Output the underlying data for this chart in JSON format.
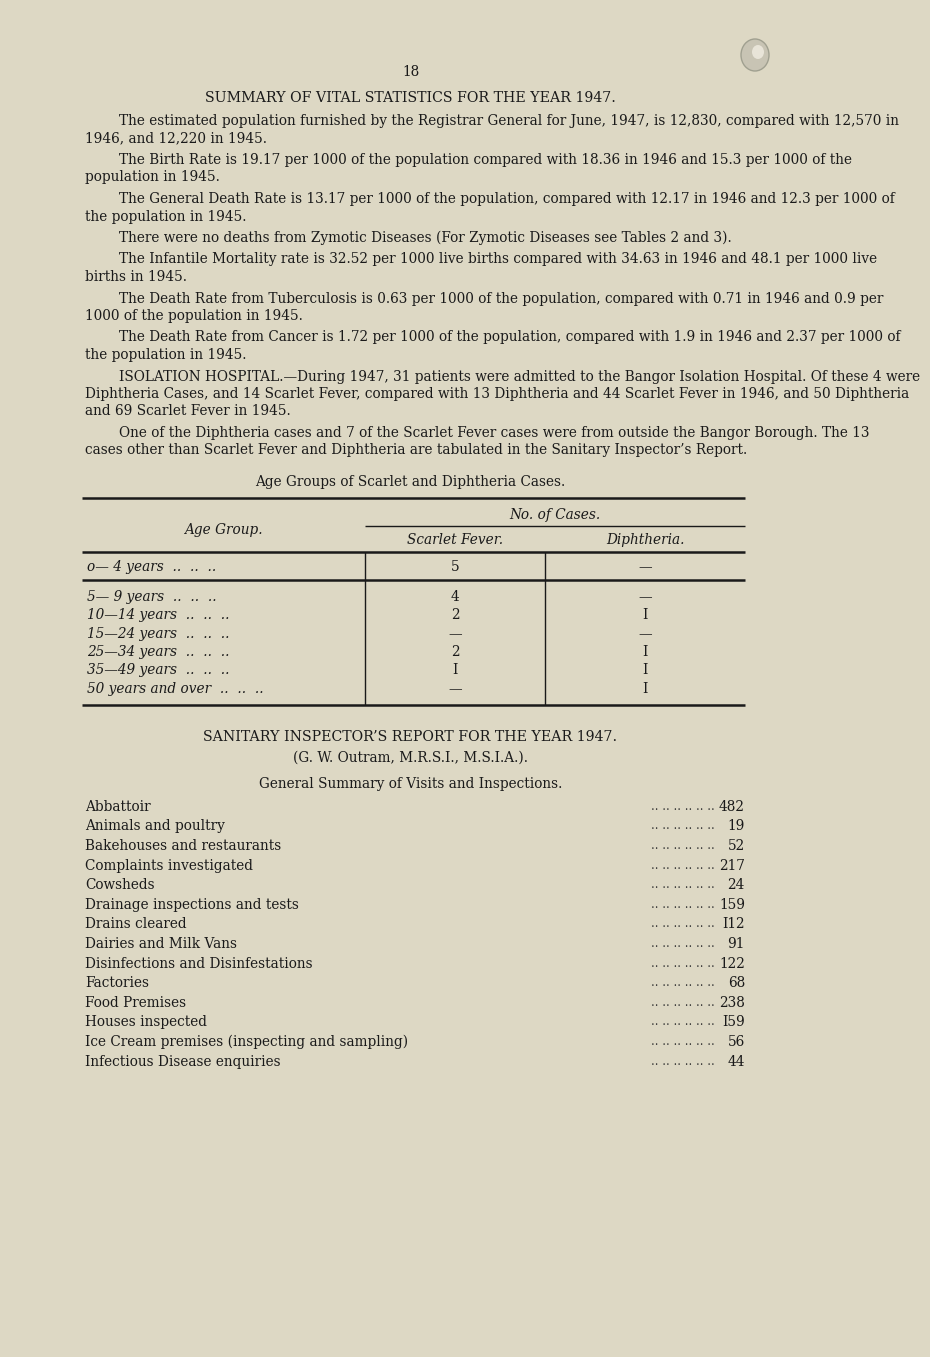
{
  "bg_color": "#ddd8c4",
  "text_color": "#1a1a1a",
  "page_number": "18",
  "title1": "SUMMARY OF VITAL STATISTICS FOR THE YEAR 1947.",
  "para1": "The estimated population furnished by the Registrar General for June, 1947, is 12,830, compared with 12,570 in 1946, and 12,220 in 1945.",
  "para2": "The Birth Rate is 19.17 per 1000 of the population compared with 18.36 in 1946 and 15.3 per 1000 of the population in 1945.",
  "para3": "The General Death Rate is 13.17 per 1000 of the population, compared with 12.17 in 1946 and 12.3 per 1000 of the population in 1945.",
  "para4": "There were no deaths from Zymotic Diseases (For Zymotic Diseases see Tables 2 and 3).",
  "para5": "The Infantile Mortality rate is 32.52 per 1000 live births compared with 34.63 in 1946 and 48.1 per 1000 live births in 1945.",
  "para6": "The Death Rate from Tuberculosis is 0.63 per 1000 of the population, compared with 0.71 in 1946 and 0.9 per 1000 of the population in 1945.",
  "para7": "The Death Rate from Cancer is 1.72 per 1000 of the population, compared with 1.9 in 1946 and 2.37 per 1000 of the population in 1945.",
  "para8": "ISOLATION HOSPITAL.—During 1947, 31 patients were admitted to the Bangor Isolation Hospital.  Of these 4 were Diphtheria Cases, and 14 Scarlet Fever, compared with 13 Diphtheria and 44 Scarlet Fever in 1946, and 50 Diphtheria and 69 Scarlet Fever in 1945.",
  "para9": "One of the Diphtheria cases and 7 of the Scarlet Fever cases were from outside the Bangor Borough.  The 13 cases other than Scarlet Fever and Diphtheria are tabulated in the Sanitary Inspector’s Report.",
  "table1_title": "Age Groups of Scarlet and Diphtheria Cases.",
  "table1_col1_header": "Age Group.",
  "table1_col23_header": "No. of Cases.",
  "table1_col2_header": "Scarlet Fever.",
  "table1_col3_header": "Diphtheria.",
  "table1_rows": [
    [
      "o— 4 years",
      "5",
      "—"
    ],
    [
      "5— 9 years",
      "4",
      "—"
    ],
    [
      "10—14 years",
      "2",
      "I"
    ],
    [
      "15—24 years",
      "—",
      "—"
    ],
    [
      "25—34 years",
      "2",
      "I"
    ],
    [
      "35—49 years",
      "I",
      "I"
    ],
    [
      "50 years and over",
      "—",
      "I"
    ]
  ],
  "title2": "SANITARY INSPECTOR’S REPORT FOR THE YEAR 1947.",
  "title2b": "(G. W. Outram, M.R.S.I., M.S.I.A.).",
  "title3": "General Summary of Visits and Inspections.",
  "sanitary_items": [
    [
      "Abbattoir",
      "482"
    ],
    [
      "Animals and poultry",
      "19"
    ],
    [
      "Bakehouses and restaurants",
      "52"
    ],
    [
      "Complaints investigated",
      "217"
    ],
    [
      "Cowsheds",
      "24"
    ],
    [
      "Drainage inspections and tests",
      "159"
    ],
    [
      "Drains cleared",
      "I12"
    ],
    [
      "Dairies and Milk Vans",
      "91"
    ],
    [
      "Disinfections and Disinfestations",
      "122"
    ],
    [
      "Factories",
      "68"
    ],
    [
      "Food Premises",
      "238"
    ],
    [
      "Houses inspected",
      "I59"
    ],
    [
      "Ice Cream premises (inspecting and sampling)",
      "56"
    ],
    [
      "Infectious Disease enquiries",
      "44"
    ]
  ]
}
